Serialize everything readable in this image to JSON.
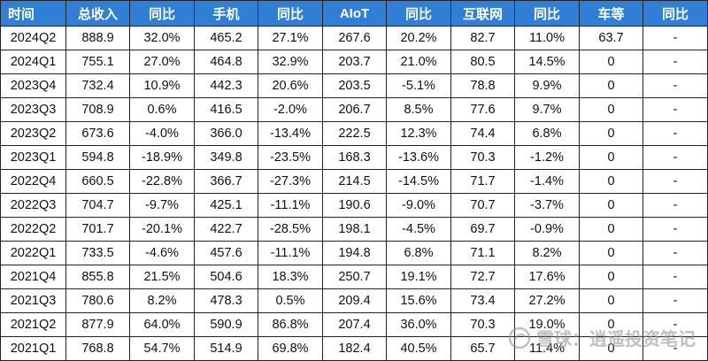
{
  "table": {
    "headers": [
      "时间",
      "总收入",
      "同比",
      "手机",
      "同比",
      "AIoT",
      "同比",
      "互联网",
      "同比",
      "车等",
      "同比"
    ],
    "rows": [
      [
        "2024Q2",
        "888.9",
        "32.0%",
        "465.2",
        "27.1%",
        "267.6",
        "20.2%",
        "82.7",
        "11.0%",
        "63.7",
        "-"
      ],
      [
        "2024Q1",
        "755.1",
        "27.0%",
        "464.8",
        "32.9%",
        "203.7",
        "21.0%",
        "80.5",
        "14.5%",
        "0",
        "-"
      ],
      [
        "2023Q4",
        "732.4",
        "10.9%",
        "442.3",
        "20.6%",
        "203.5",
        "-5.1%",
        "78.8",
        "9.9%",
        "0",
        "-"
      ],
      [
        "2023Q3",
        "708.9",
        "0.6%",
        "416.5",
        "-2.0%",
        "206.7",
        "8.5%",
        "77.6",
        "9.7%",
        "0",
        "-"
      ],
      [
        "2023Q2",
        "673.6",
        "-4.0%",
        "366.0",
        "-13.4%",
        "222.5",
        "12.3%",
        "74.4",
        "6.8%",
        "0",
        "-"
      ],
      [
        "2023Q1",
        "594.8",
        "-18.9%",
        "349.8",
        "-23.5%",
        "168.3",
        "-13.6%",
        "70.3",
        "-1.2%",
        "0",
        "-"
      ],
      [
        "2022Q4",
        "660.5",
        "-22.8%",
        "366.7",
        "-27.3%",
        "214.5",
        "-14.5%",
        "71.7",
        "-1.4%",
        "0",
        "-"
      ],
      [
        "2022Q3",
        "704.7",
        "-9.7%",
        "425.1",
        "-11.1%",
        "190.6",
        "-9.0%",
        "70.7",
        "-3.7%",
        "0",
        "-"
      ],
      [
        "2022Q2",
        "701.7",
        "-20.1%",
        "422.7",
        "-28.5%",
        "198.1",
        "-4.5%",
        "69.7",
        "-0.9%",
        "0",
        "-"
      ],
      [
        "2022Q1",
        "733.5",
        "-4.6%",
        "457.6",
        "-11.1%",
        "194.8",
        "6.8%",
        "71.1",
        "8.2%",
        "0",
        "-"
      ],
      [
        "2021Q4",
        "855.8",
        "21.5%",
        "504.6",
        "18.3%",
        "250.7",
        "19.1%",
        "72.7",
        "17.6%",
        "0",
        "-"
      ],
      [
        "2021Q3",
        "780.6",
        "8.2%",
        "478.3",
        "0.5%",
        "209.4",
        "15.6%",
        "73.4",
        "27.2%",
        "0",
        "-"
      ],
      [
        "2021Q2",
        "877.9",
        "64.0%",
        "590.9",
        "86.8%",
        "207.4",
        "36.0%",
        "70.3",
        "19.0%",
        "0",
        "-"
      ],
      [
        "2021Q1",
        "768.8",
        "54.7%",
        "514.9",
        "69.8%",
        "182.4",
        "40.5%",
        "65.7",
        "11.4%",
        "0",
        "-"
      ]
    ]
  },
  "watermark": {
    "text": "雪球：逍遥投资笔记",
    "icon": "snowball-logo-icon"
  },
  "colors": {
    "header_bg": "#2f7fd6",
    "header_text": "#ffffff",
    "border": "#222222"
  }
}
